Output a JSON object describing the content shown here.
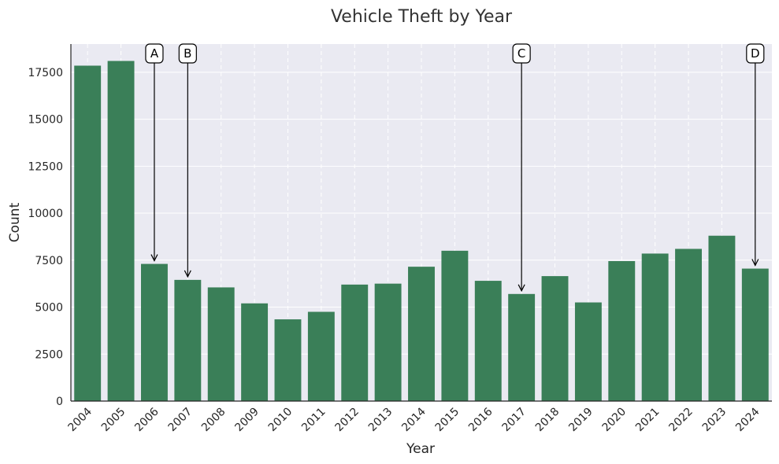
{
  "chart_data": {
    "type": "bar",
    "title": "Vehicle Theft by Year",
    "xlabel": "Year",
    "ylabel": "Count",
    "categories": [
      "2004",
      "2005",
      "2006",
      "2007",
      "2008",
      "2009",
      "2010",
      "2011",
      "2012",
      "2013",
      "2014",
      "2015",
      "2016",
      "2017",
      "2018",
      "2019",
      "2020",
      "2021",
      "2022",
      "2023",
      "2024"
    ],
    "values": [
      17850,
      18100,
      7300,
      6450,
      6050,
      5200,
      4350,
      4750,
      6200,
      6250,
      7150,
      8000,
      6400,
      5700,
      6650,
      5250,
      7450,
      7850,
      8100,
      8800,
      7050
    ],
    "ylim": [
      0,
      19000
    ],
    "yticks": [
      0,
      2500,
      5000,
      7500,
      10000,
      12500,
      15000,
      17500
    ],
    "grid": true,
    "bar_color": "#3a7f58",
    "background_color": "#eaeaf2",
    "annotations": [
      {
        "label": "A",
        "category": "2006"
      },
      {
        "label": "B",
        "category": "2007"
      },
      {
        "label": "C",
        "category": "2017"
      },
      {
        "label": "D",
        "category": "2024"
      }
    ]
  }
}
